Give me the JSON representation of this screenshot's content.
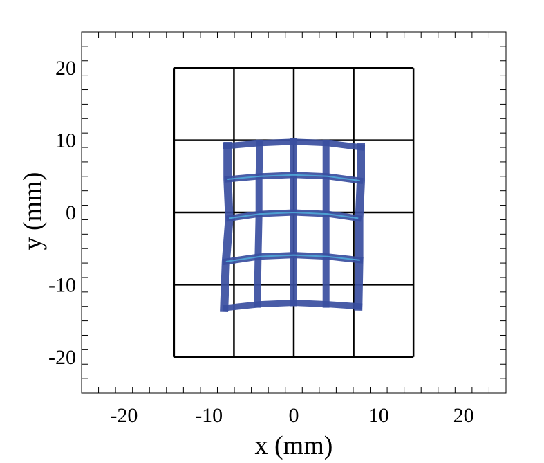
{
  "chart_data": {
    "type": "scatter",
    "title": "",
    "xlabel": "x (mm)",
    "ylabel": "y (mm)",
    "xlim": [
      -25,
      25
    ],
    "ylim": [
      -25,
      25
    ],
    "x_ticks": [
      -20,
      -10,
      0,
      10,
      20
    ],
    "y_ticks": [
      -20,
      -10,
      0,
      10,
      20
    ],
    "x_tick_labels": [
      "-20",
      "-10",
      "0",
      "10",
      "20"
    ],
    "y_tick_labels": [
      "-20",
      "-10",
      "0",
      "10",
      "20"
    ],
    "minor_tick_step": 2,
    "grid": false,
    "legend": "none",
    "reference_grid": {
      "x_lines": [
        -14.1,
        -7.05,
        0,
        7.05,
        14.1
      ],
      "y_lines": [
        -20,
        -10,
        0,
        10,
        20
      ],
      "color": "#000000"
    },
    "distorted_grid": {
      "horizontal_curves": [
        [
          [
            -8.0,
            9.2
          ],
          [
            -4.0,
            9.6
          ],
          [
            0,
            9.8
          ],
          [
            4.0,
            9.6
          ],
          [
            8.0,
            9.0
          ]
        ],
        [
          [
            -7.8,
            4.6
          ],
          [
            -4.0,
            5.0
          ],
          [
            0,
            5.2
          ],
          [
            4.0,
            5.0
          ],
          [
            7.8,
            4.4
          ]
        ],
        [
          [
            -7.6,
            -0.8
          ],
          [
            -4.0,
            -0.2
          ],
          [
            0,
            0.0
          ],
          [
            4.0,
            -0.2
          ],
          [
            7.6,
            -0.8
          ]
        ],
        [
          [
            -8.0,
            -6.8
          ],
          [
            -4.0,
            -6.1
          ],
          [
            0,
            -5.9
          ],
          [
            4.0,
            -6.1
          ],
          [
            7.8,
            -6.6
          ]
        ],
        [
          [
            -8.0,
            -13.2
          ],
          [
            -4.0,
            -12.7
          ],
          [
            0,
            -12.5
          ],
          [
            4.0,
            -12.7
          ],
          [
            7.7,
            -13.0
          ]
        ]
      ],
      "vertical_curves": [
        [
          [
            -7.8,
            9.2
          ],
          [
            -7.8,
            4.6
          ],
          [
            -7.6,
            -0.8
          ],
          [
            -8.0,
            -6.8
          ],
          [
            -8.2,
            -13.2
          ]
        ],
        [
          [
            -4.0,
            9.6
          ],
          [
            -4.1,
            5.0
          ],
          [
            -4.1,
            -0.2
          ],
          [
            -4.2,
            -6.1
          ],
          [
            -4.3,
            -12.7
          ]
        ],
        [
          [
            0,
            9.8
          ],
          [
            0,
            5.2
          ],
          [
            0,
            0.0
          ],
          [
            0,
            -5.9
          ],
          [
            0,
            -12.5
          ]
        ],
        [
          [
            3.8,
            9.6
          ],
          [
            3.8,
            5.0
          ],
          [
            3.8,
            -0.2
          ],
          [
            3.8,
            -6.1
          ],
          [
            3.8,
            -12.7
          ]
        ],
        [
          [
            7.9,
            9.0
          ],
          [
            7.9,
            4.4
          ],
          [
            7.7,
            -0.8
          ],
          [
            7.7,
            -6.6
          ],
          [
            7.6,
            -13.0
          ]
        ]
      ],
      "color": "#3a4ea0",
      "highlight_color": "#4fa8d8"
    }
  }
}
